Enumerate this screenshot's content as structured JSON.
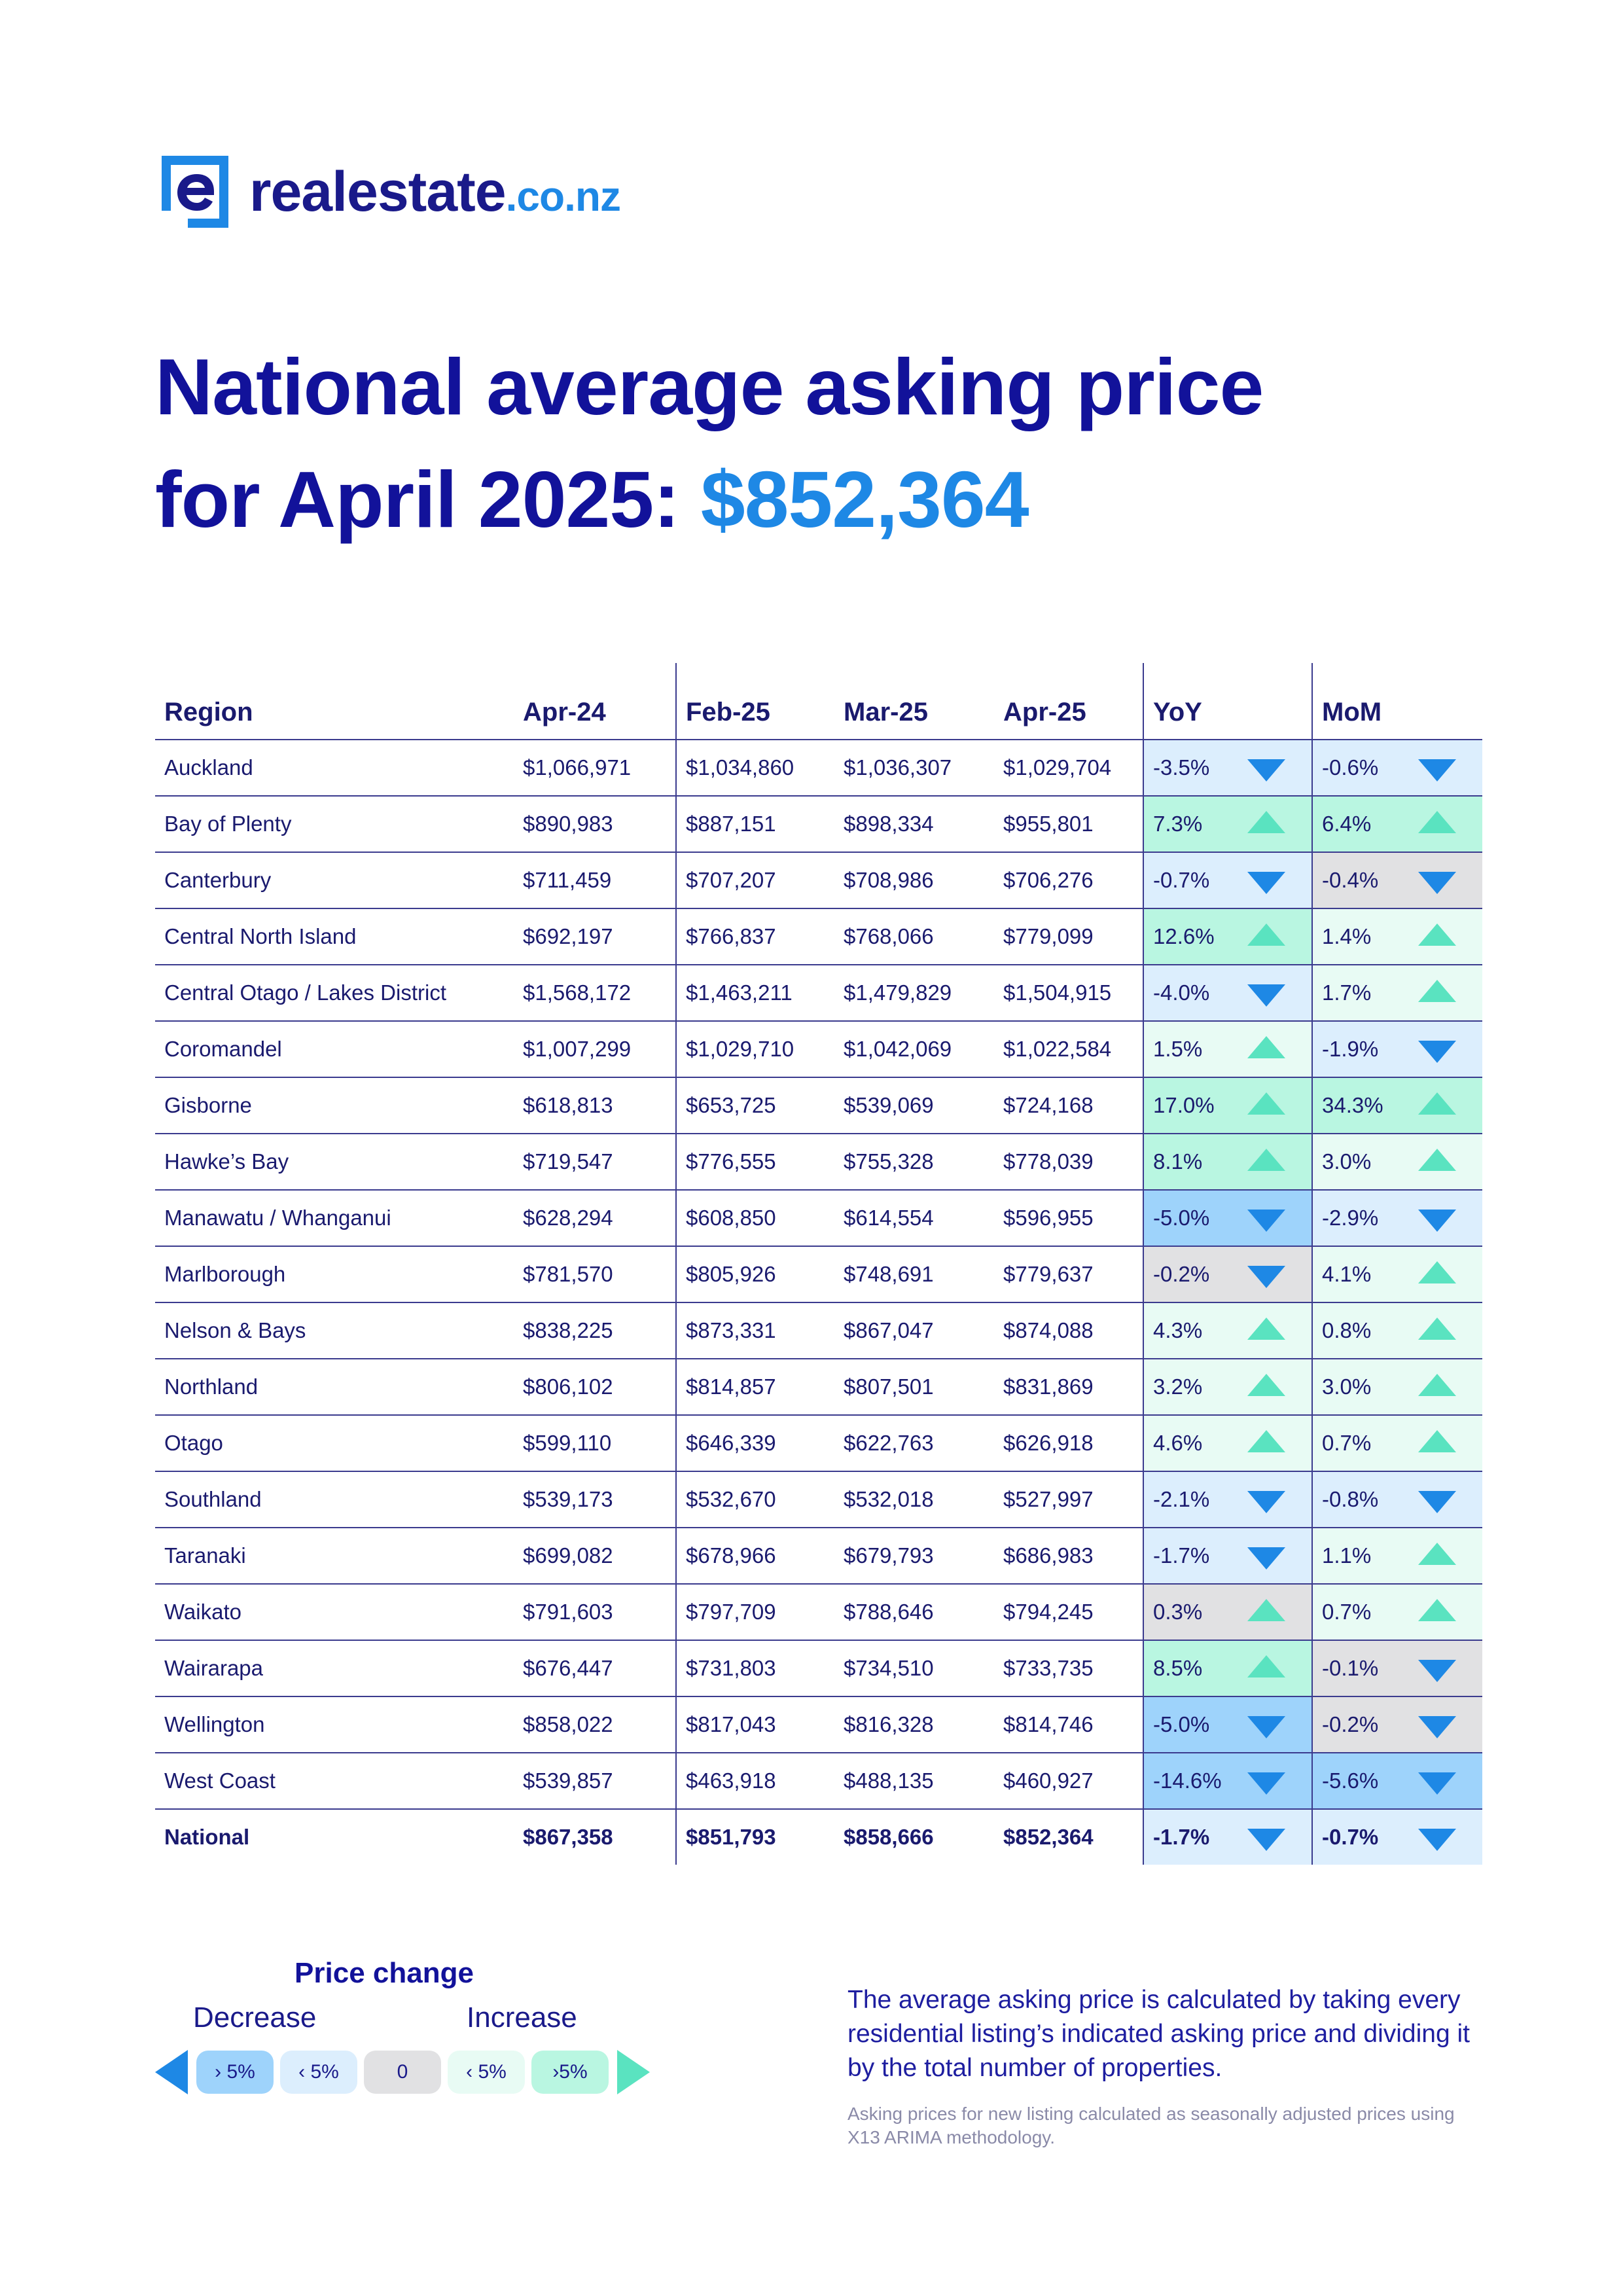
{
  "logo": {
    "name": "realestate",
    "tld": ".co.nz"
  },
  "headline": {
    "line1": "National average asking price",
    "line2": "for April 2025: ",
    "price": "$852,364"
  },
  "table": {
    "headers": [
      "Region",
      "Apr-24",
      "Feb-25",
      "Mar-25",
      "Apr-25",
      "YoY",
      "MoM"
    ],
    "rows": [
      {
        "region": "Auckland",
        "apr24": "$1,066,971",
        "feb25": "$1,034,860",
        "mar25": "$1,036,307",
        "apr25": "$1,029,704",
        "yoy": "-3.5%",
        "mom": "-0.6%"
      },
      {
        "region": "Bay of Plenty",
        "apr24": "$890,983",
        "feb25": "$887,151",
        "mar25": "$898,334",
        "apr25": "$955,801",
        "yoy": "7.3%",
        "mom": "6.4%"
      },
      {
        "region": "Canterbury",
        "apr24": "$711,459",
        "feb25": "$707,207",
        "mar25": "$708,986",
        "apr25": "$706,276",
        "yoy": "-0.7%",
        "mom": "-0.4%"
      },
      {
        "region": "Central North Island",
        "apr24": "$692,197",
        "feb25": "$766,837",
        "mar25": "$768,066",
        "apr25": "$779,099",
        "yoy": "12.6%",
        "mom": "1.4%"
      },
      {
        "region": "Central Otago / Lakes District",
        "apr24": "$1,568,172",
        "feb25": "$1,463,211",
        "mar25": "$1,479,829",
        "apr25": "$1,504,915",
        "yoy": "-4.0%",
        "mom": "1.7%"
      },
      {
        "region": "Coromandel",
        "apr24": "$1,007,299",
        "feb25": "$1,029,710",
        "mar25": "$1,042,069",
        "apr25": "$1,022,584",
        "yoy": "1.5%",
        "mom": "-1.9%"
      },
      {
        "region": "Gisborne",
        "apr24": "$618,813",
        "feb25": "$653,725",
        "mar25": "$539,069",
        "apr25": "$724,168",
        "yoy": "17.0%",
        "mom": "34.3%"
      },
      {
        "region": "Hawke’s Bay",
        "apr24": "$719,547",
        "feb25": "$776,555",
        "mar25": "$755,328",
        "apr25": "$778,039",
        "yoy": "8.1%",
        "mom": "3.0%"
      },
      {
        "region": "Manawatu / Whanganui",
        "apr24": "$628,294",
        "feb25": "$608,850",
        "mar25": "$614,554",
        "apr25": "$596,955",
        "yoy": "-5.0%",
        "mom": "-2.9%"
      },
      {
        "region": "Marlborough",
        "apr24": "$781,570",
        "feb25": "$805,926",
        "mar25": "$748,691",
        "apr25": "$779,637",
        "yoy": "-0.2%",
        "mom": "4.1%"
      },
      {
        "region": "Nelson & Bays",
        "apr24": "$838,225",
        "feb25": "$873,331",
        "mar25": "$867,047",
        "apr25": "$874,088",
        "yoy": "4.3%",
        "mom": "0.8%"
      },
      {
        "region": "Northland",
        "apr24": "$806,102",
        "feb25": "$814,857",
        "mar25": "$807,501",
        "apr25": "$831,869",
        "yoy": "3.2%",
        "mom": "3.0%"
      },
      {
        "region": "Otago",
        "apr24": "$599,110",
        "feb25": "$646,339",
        "mar25": "$622,763",
        "apr25": "$626,918",
        "yoy": "4.6%",
        "mom": "0.7%"
      },
      {
        "region": "Southland",
        "apr24": "$539,173",
        "feb25": "$532,670",
        "mar25": "$532,018",
        "apr25": "$527,997",
        "yoy": "-2.1%",
        "mom": "-0.8%"
      },
      {
        "region": "Taranaki",
        "apr24": "$699,082",
        "feb25": "$678,966",
        "mar25": "$679,793",
        "apr25": "$686,983",
        "yoy": "-1.7%",
        "mom": "1.1%"
      },
      {
        "region": "Waikato",
        "apr24": "$791,603",
        "feb25": "$797,709",
        "mar25": "$788,646",
        "apr25": "$794,245",
        "yoy": "0.3%",
        "mom": "0.7%"
      },
      {
        "region": "Wairarapa",
        "apr24": "$676,447",
        "feb25": "$731,803",
        "mar25": "$734,510",
        "apr25": "$733,735",
        "yoy": "8.5%",
        "mom": "-0.1%"
      },
      {
        "region": "Wellington",
        "apr24": "$858,022",
        "feb25": "$817,043",
        "mar25": "$816,328",
        "apr25": "$814,746",
        "yoy": "-5.0%",
        "mom": "-0.2%"
      },
      {
        "region": "West Coast",
        "apr24": "$539,857",
        "feb25": "$463,918",
        "mar25": "$488,135",
        "apr25": "$460,927",
        "yoy": "-14.6%",
        "mom": "-5.6%"
      }
    ],
    "national": {
      "region": "National",
      "apr24": "$867,358",
      "feb25": "$851,793",
      "mar25": "$858,666",
      "apr25": "$852,364",
      "yoy": "-1.7%",
      "mom": "-0.7%"
    }
  },
  "legend": {
    "title": "Price change",
    "decrease": "Decrease",
    "increase": "Increase",
    "pills": [
      "› 5%",
      "‹ 5%",
      "0",
      "‹ 5%",
      "›5%"
    ]
  },
  "note": {
    "main": "The average asking price is calculated by taking every residential listing’s indicated asking price and dividing it by the total number of properties.",
    "small": "Asking prices for new listing calculated as seasonally adjusted prices using X13 ARIMA methodology."
  },
  "colors": {
    "navy": "#12129a",
    "accent_blue": "#1e88e5",
    "teal": "#5ae3c0",
    "decrease_big": "#9ed3fb",
    "decrease": "#dceefd",
    "zero": "#e1e1e3",
    "increase": "#e8fbf4",
    "increase_big": "#b9f6e1"
  }
}
